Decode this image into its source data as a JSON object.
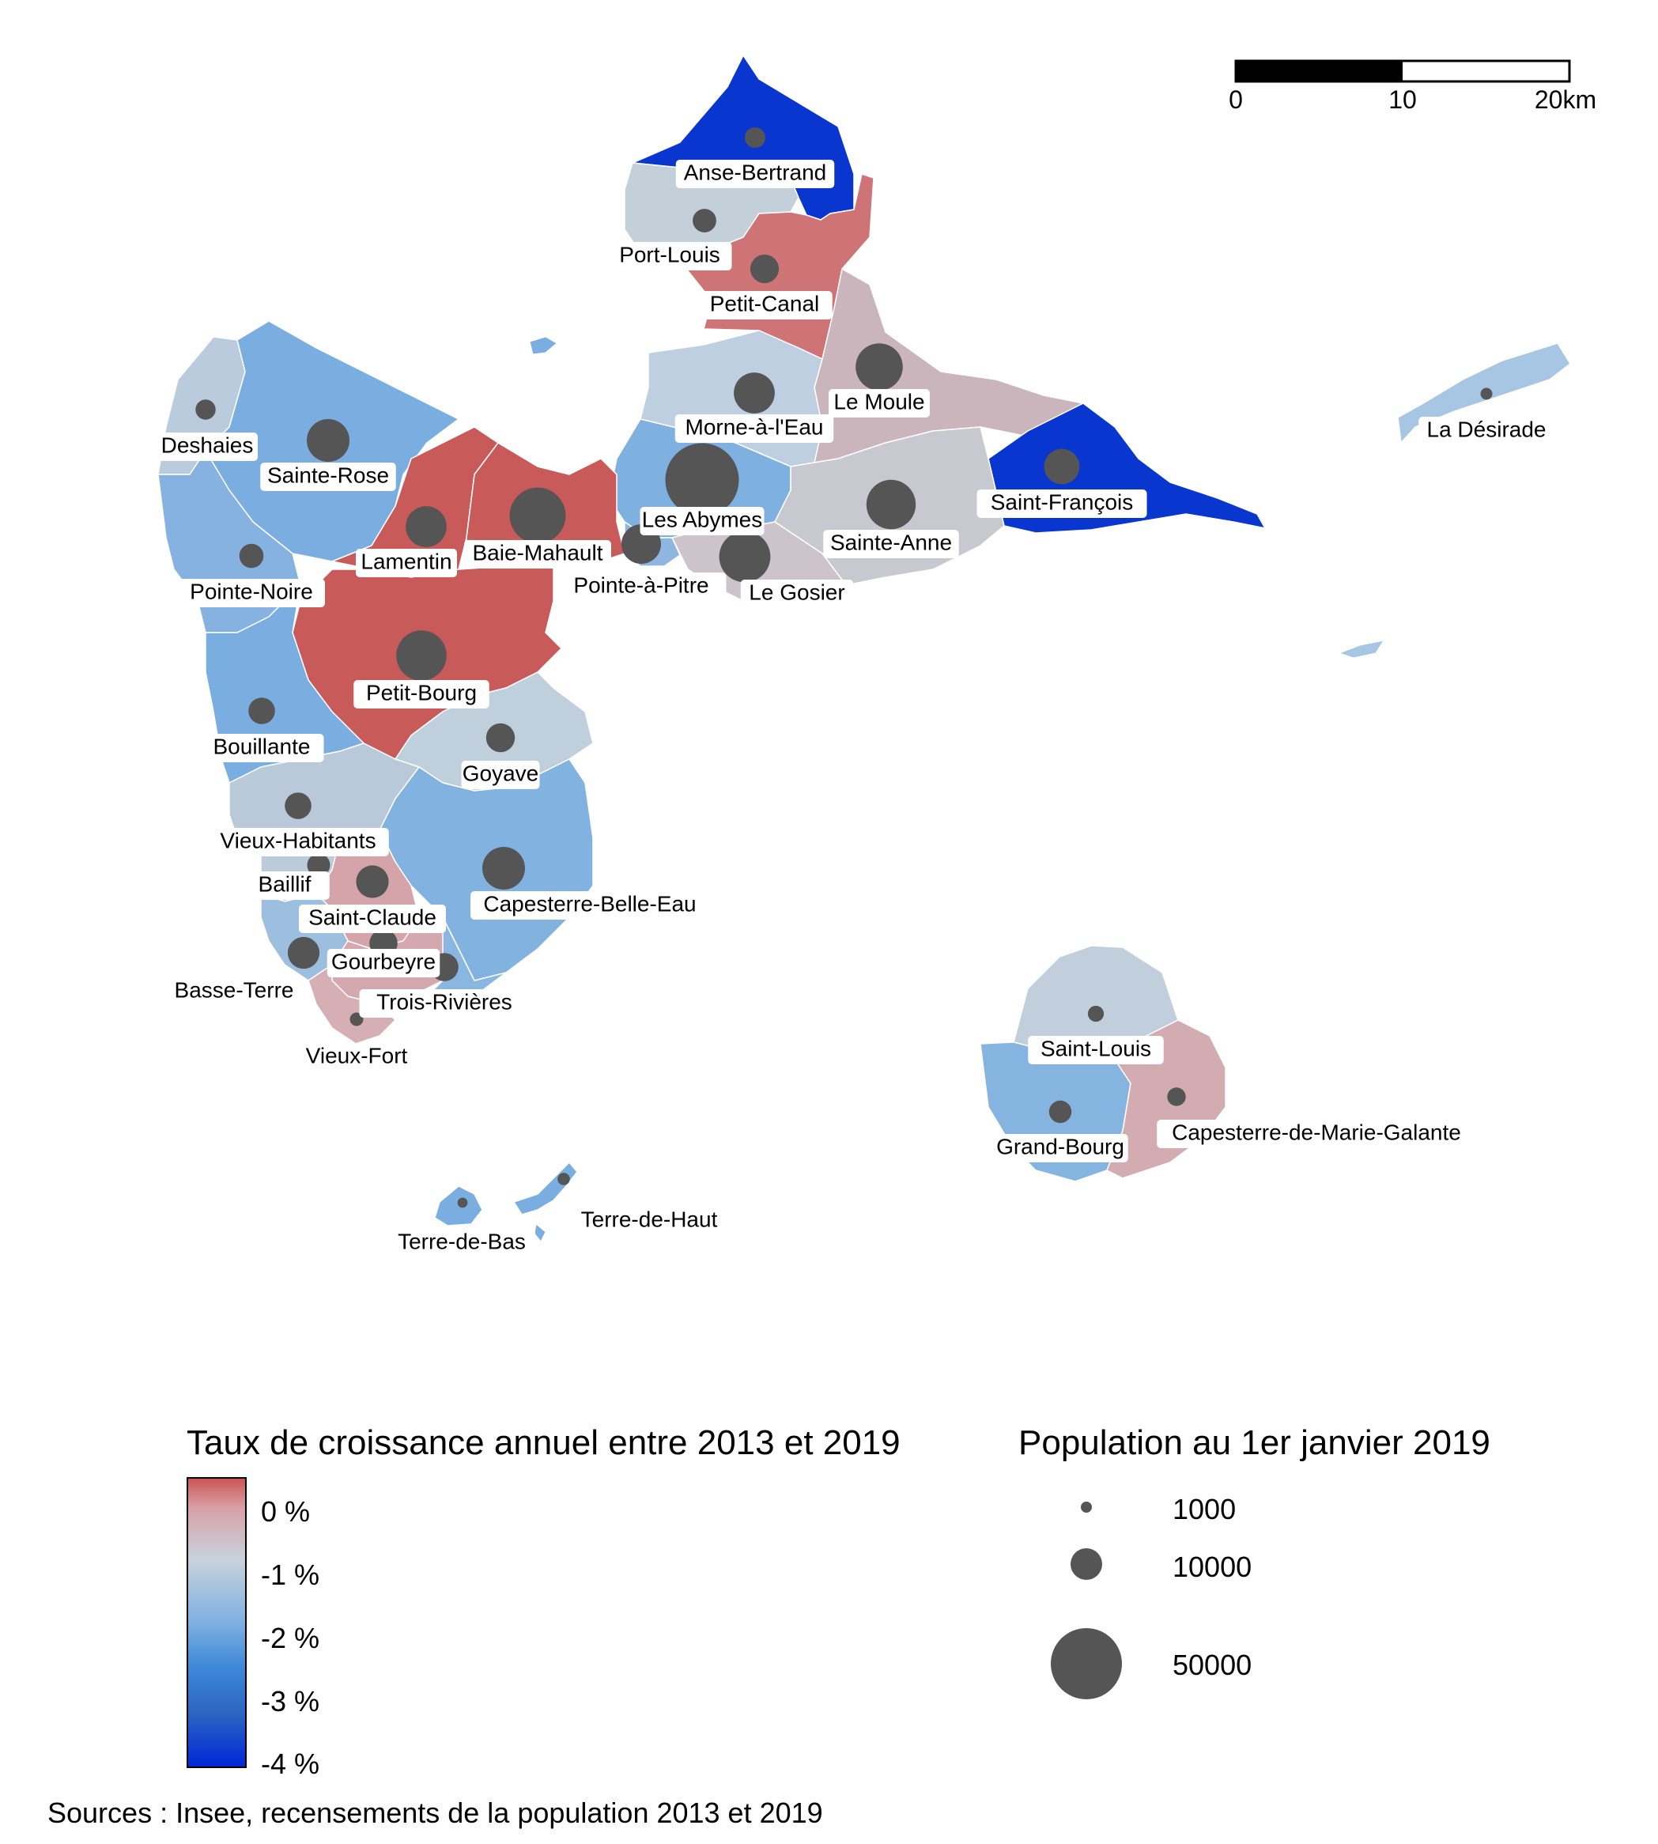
{
  "scale_bar": {
    "labels": [
      "0",
      "10",
      "20km"
    ]
  },
  "communes": [
    {
      "name": "Anse-Bertrand",
      "color": "#0a36d0",
      "population": 4200
    },
    {
      "name": "Port-Louis",
      "color": "#c3cfd9",
      "population": 5500
    },
    {
      "name": "Petit-Canal",
      "color": "#cf7476",
      "population": 8100
    },
    {
      "name": "Le Moule",
      "color": "#c9b5bb",
      "population": 22000
    },
    {
      "name": "Morne-à-l'Eau",
      "color": "#bdcfe0",
      "population": 16500
    },
    {
      "name": "Les Abymes",
      "color": "#7eb0e0",
      "population": 53500
    },
    {
      "name": "Saint-François",
      "color": "#0a36d0",
      "population": 12400
    },
    {
      "name": "Sainte-Anne",
      "color": "#c8c8d0",
      "population": 24000
    },
    {
      "name": "Le Gosier",
      "color": "#cdc3cb",
      "population": 26000
    },
    {
      "name": "Pointe-à-Pitre",
      "color": "#8fb6e0",
      "population": 15400
    },
    {
      "name": "Baie-Mahault",
      "color": "#c85a5a",
      "population": 31000
    },
    {
      "name": "Lamentin",
      "color": "#c85a5a",
      "population": 16500
    },
    {
      "name": "Sainte-Rose",
      "color": "#7aaee0",
      "population": 18000
    },
    {
      "name": "Deshaies",
      "color": "#b9cbdd",
      "population": 4000
    },
    {
      "name": "Pointe-Noire",
      "color": "#85b2e0",
      "population": 5800
    },
    {
      "name": "Petit-Bourg",
      "color": "#c85a5a",
      "population": 25000
    },
    {
      "name": "Goyave",
      "color": "#c0cfdc",
      "population": 8200
    },
    {
      "name": "Bouillante",
      "color": "#7aaee0",
      "population": 7000
    },
    {
      "name": "Vieux-Habitants",
      "color": "#bac9d9",
      "population": 7000
    },
    {
      "name": "Capesterre-Belle-Eau",
      "color": "#82b2e0",
      "population": 18000
    },
    {
      "name": "Baillif",
      "color": "#bccbd9",
      "population": 5200
    },
    {
      "name": "Saint-Claude",
      "color": "#d4a4aa",
      "population": 10500
    },
    {
      "name": "Basse-Terre",
      "color": "#9cbfe0",
      "population": 10000
    },
    {
      "name": "Gourbeyre",
      "color": "#d4a8ae",
      "population": 7800
    },
    {
      "name": "Trois-Rivières",
      "color": "#8ab6e2",
      "population": 7800
    },
    {
      "name": "Vieux-Fort",
      "color": "#d6afb4",
      "population": 1800
    },
    {
      "name": "La Désirade",
      "color": "#a6c6e4",
      "population": 1400
    },
    {
      "name": "Saint-Louis",
      "color": "#c1cfdd",
      "population": 2500
    },
    {
      "name": "Grand-Bourg",
      "color": "#86b4e0",
      "population": 5000
    },
    {
      "name": "Capesterre-de-Marie-Galante",
      "color": "#d3acb2",
      "population": 3400
    },
    {
      "name": "Terre-de-Haut",
      "color": "#7aaee0",
      "population": 1500
    },
    {
      "name": "Terre-de-Bas",
      "color": "#7aaee0",
      "population": 1000
    }
  ],
  "legend_growth": {
    "title": "Taux de croissance annuel entre 2013 et 2019",
    "ticks": [
      "0 %",
      "-1 %",
      "-2 %",
      "-3 %",
      "-4 %"
    ],
    "colors": [
      "#cc5555",
      "#c8d2dc",
      "#3f8ad8",
      "#0027d8"
    ]
  },
  "legend_population": {
    "title": "Population au 1er janvier 2019",
    "values": [
      "1000",
      "10000",
      "50000"
    ]
  },
  "sources": "Sources : Insee, recensements de la population 2013 et 2019"
}
